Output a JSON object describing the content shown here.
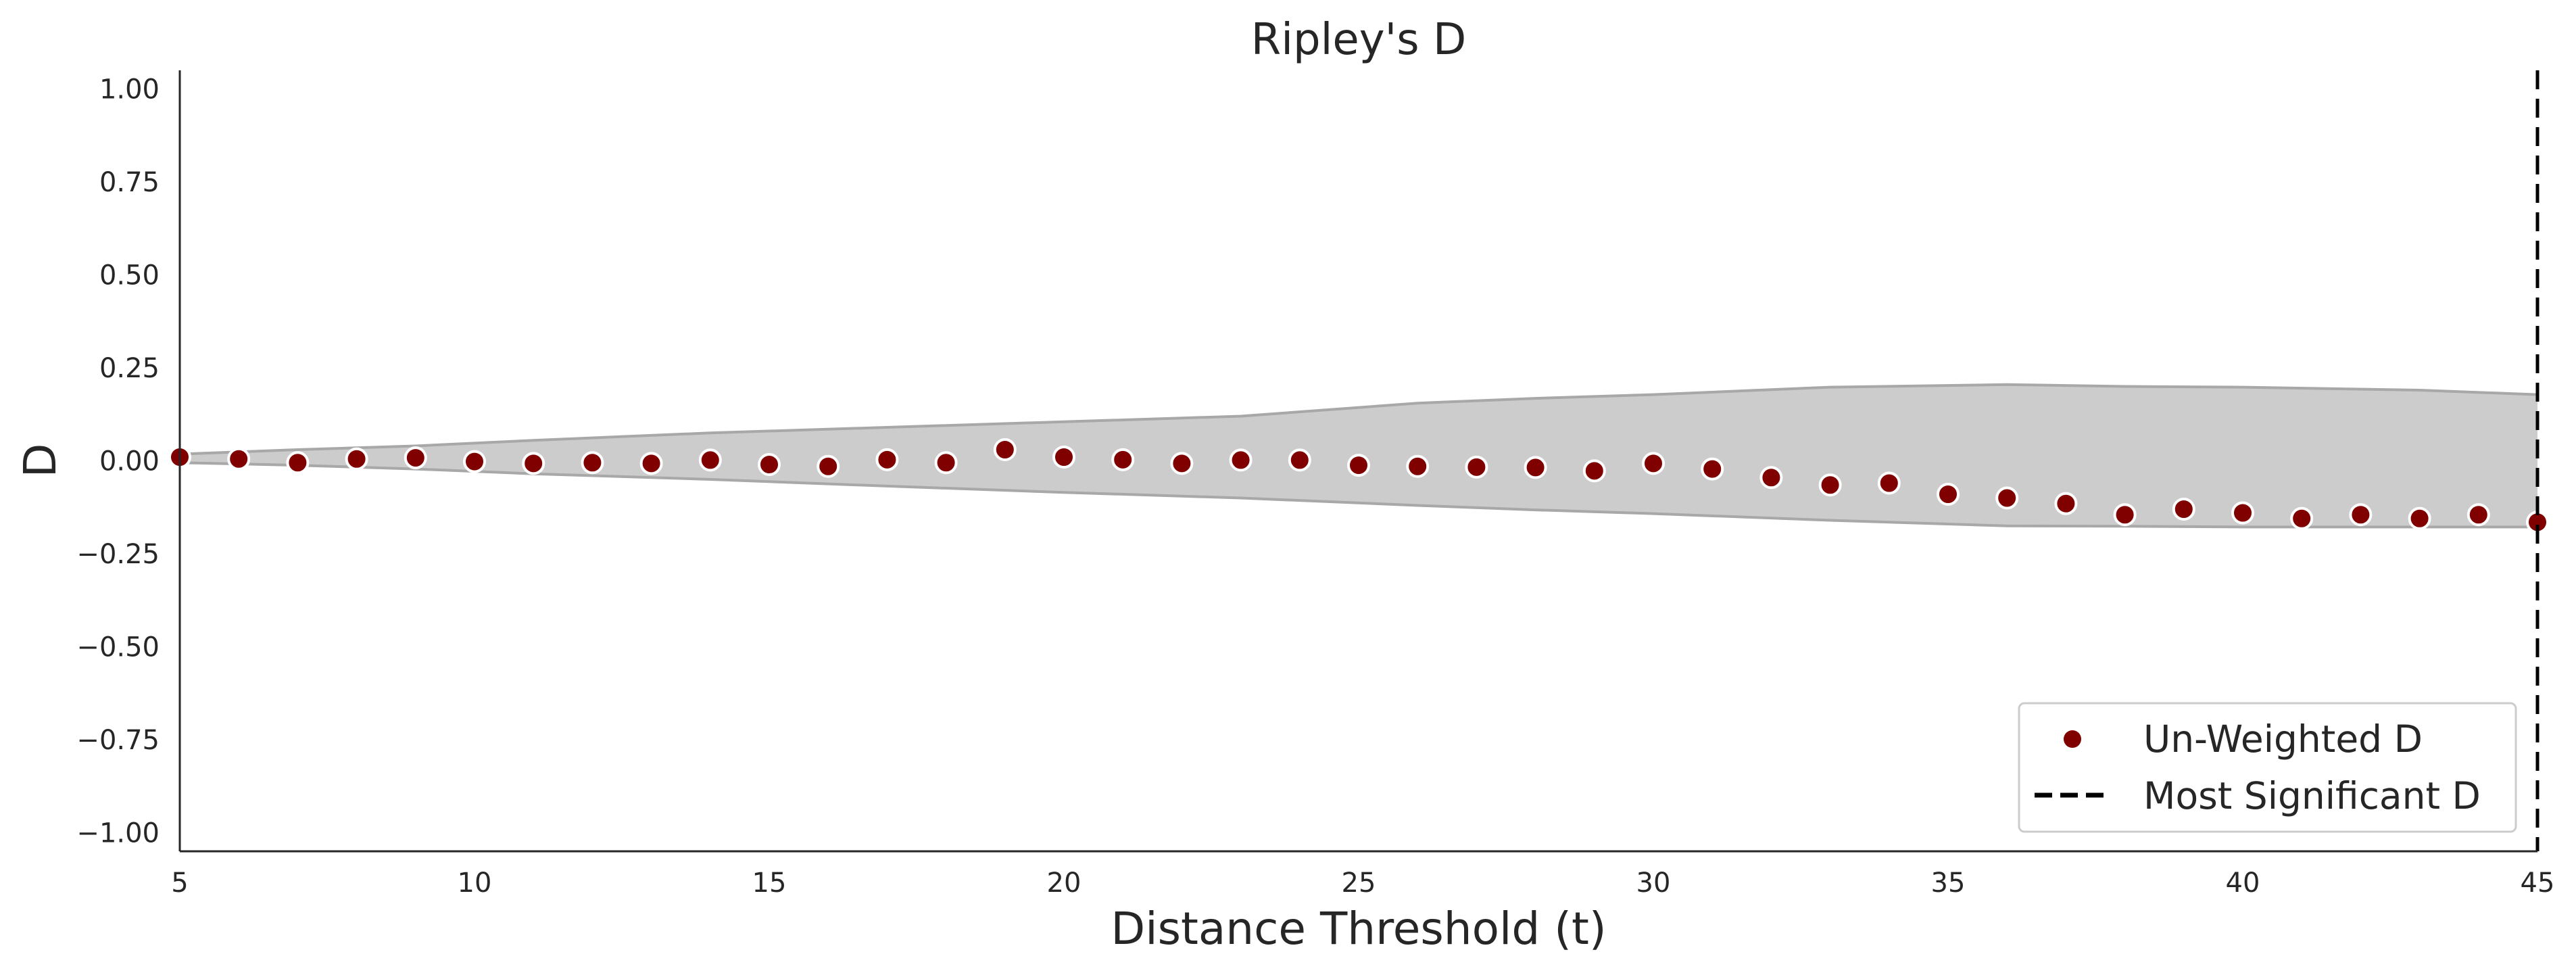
{
  "chart_data": {
    "type": "scatter",
    "title": "Ripley's D",
    "xlabel": "Distance Threshold (t)",
    "ylabel": "D",
    "xlim": [
      5,
      45
    ],
    "ylim": [
      -1.05,
      1.05
    ],
    "xticks": [
      5,
      10,
      15,
      20,
      25,
      30,
      35,
      40,
      45
    ],
    "yticks": [
      1.0,
      0.75,
      0.5,
      0.25,
      0.0,
      -0.25,
      -0.5,
      -0.75,
      -1.0
    ],
    "ytick_labels": [
      "1.00",
      "0.75",
      "0.50",
      "0.25",
      "0.00",
      "−0.25",
      "−0.50",
      "−0.75",
      "−1.00"
    ],
    "grid": false,
    "legend_position": "bottom-right",
    "series": [
      {
        "name": "Un-Weighted D",
        "color": "#800000",
        "x": [
          5,
          6,
          7,
          8,
          9,
          10,
          11,
          12,
          13,
          14,
          15,
          16,
          17,
          18,
          19,
          20,
          21,
          22,
          23,
          24,
          25,
          26,
          27,
          28,
          29,
          30,
          31,
          32,
          33,
          34,
          35,
          36,
          37,
          38,
          39,
          40,
          41,
          42,
          43,
          44,
          45
        ],
        "y": [
          0.01,
          0.005,
          -0.005,
          0.005,
          0.008,
          -0.002,
          -0.007,
          -0.005,
          -0.007,
          0.002,
          -0.01,
          -0.015,
          0.003,
          -0.005,
          0.03,
          0.01,
          0.003,
          -0.007,
          0.002,
          0.002,
          -0.012,
          -0.015,
          -0.017,
          -0.018,
          -0.027,
          -0.007,
          -0.022,
          -0.045,
          -0.065,
          -0.06,
          -0.09,
          -0.1,
          -0.115,
          -0.145,
          -0.13,
          -0.14,
          -0.155,
          -0.145,
          -0.155,
          -0.145,
          -0.165
        ]
      }
    ],
    "envelope": {
      "color": "#cccccc",
      "x": [
        5,
        7,
        9,
        11,
        14,
        17,
        20,
        23,
        26,
        28,
        30,
        33,
        36,
        38,
        40,
        43,
        45
      ],
      "upper": [
        0.018,
        0.03,
        0.04,
        0.055,
        0.075,
        0.09,
        0.105,
        0.12,
        0.155,
        0.168,
        0.178,
        0.198,
        0.205,
        0.2,
        0.198,
        0.19,
        0.178
      ],
      "lower": [
        -0.005,
        -0.012,
        -0.022,
        -0.035,
        -0.05,
        -0.068,
        -0.085,
        -0.1,
        -0.12,
        -0.132,
        -0.142,
        -0.16,
        -0.175,
        -0.176,
        -0.178,
        -0.178,
        -0.178
      ]
    },
    "reference_line": {
      "name": "Most Significant D",
      "x": 45,
      "style": "dashed",
      "color": "#000000"
    }
  }
}
